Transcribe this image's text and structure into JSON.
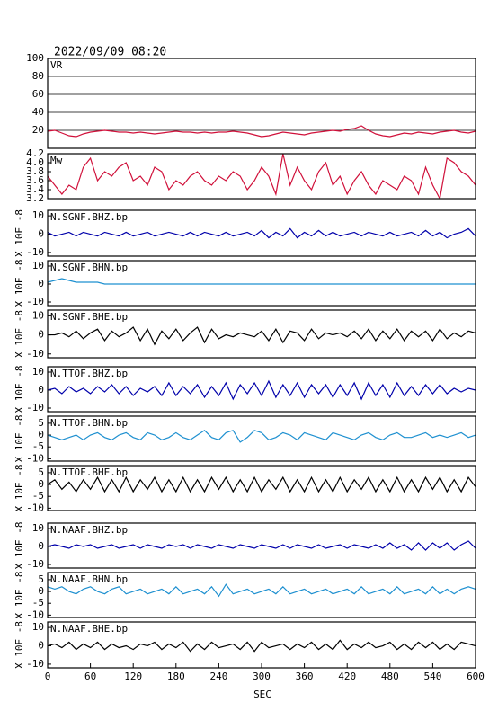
{
  "chart_data": {
    "type": "line",
    "title": "2022/09/09 08:20",
    "xlabel": "SEC",
    "ylabel": "X 10E -8",
    "xlim": [
      0,
      600
    ],
    "xticks": [
      0,
      60,
      120,
      180,
      240,
      300,
      360,
      420,
      480,
      540,
      600
    ],
    "x": [
      0,
      10,
      20,
      30,
      40,
      50,
      60,
      70,
      80,
      90,
      100,
      110,
      120,
      130,
      140,
      150,
      160,
      170,
      180,
      190,
      200,
      210,
      220,
      230,
      240,
      250,
      260,
      270,
      280,
      290,
      300,
      310,
      320,
      330,
      340,
      350,
      360,
      370,
      380,
      390,
      400,
      410,
      420,
      430,
      440,
      450,
      460,
      470,
      480,
      490,
      500,
      510,
      520,
      530,
      540,
      550,
      560,
      570,
      580,
      590,
      600
    ],
    "panels": [
      {
        "label": "VR",
        "color": "#d0103a",
        "ylim": [
          0,
          100
        ],
        "yticks": [
          20,
          40,
          60,
          80,
          100
        ],
        "grid": true,
        "wave_axis": false,
        "values": [
          19,
          20,
          17,
          14,
          13,
          16,
          18,
          19,
          20,
          19,
          18,
          18,
          17,
          18,
          17,
          16,
          17,
          18,
          19,
          18,
          18,
          17,
          18,
          17,
          18,
          18,
          19,
          18,
          17,
          15,
          13,
          14,
          16,
          18,
          17,
          16,
          15,
          17,
          18,
          19,
          20,
          19,
          21,
          22,
          25,
          20,
          16,
          14,
          13,
          15,
          17,
          16,
          18,
          17,
          16,
          18,
          19,
          20,
          18,
          17,
          19
        ]
      },
      {
        "label": "Mw",
        "color": "#d0103a",
        "ylim": [
          3.2,
          4.2
        ],
        "yticks": [
          3.2,
          3.4,
          3.6,
          3.8,
          {
            "value": 4,
            "label": "4.0"
          },
          4.2
        ],
        "grid": false,
        "wave_axis": false,
        "values": [
          3.7,
          3.5,
          3.3,
          3.5,
          3.4,
          3.9,
          4.1,
          3.6,
          3.8,
          3.7,
          3.9,
          4.0,
          3.6,
          3.7,
          3.5,
          3.9,
          3.8,
          3.4,
          3.6,
          3.5,
          3.7,
          3.8,
          3.6,
          3.5,
          3.7,
          3.6,
          3.8,
          3.7,
          3.4,
          3.6,
          3.9,
          3.7,
          3.3,
          4.2,
          3.5,
          3.9,
          3.6,
          3.4,
          3.8,
          4.0,
          3.5,
          3.7,
          3.3,
          3.6,
          3.8,
          3.5,
          3.3,
          3.6,
          3.5,
          3.4,
          3.7,
          3.6,
          3.3,
          3.9,
          3.5,
          3.2,
          4.1,
          4.0,
          3.8,
          3.7,
          3.5
        ]
      },
      {
        "label": "N.SGNF.BHZ.bp",
        "color": "#0000aa",
        "ylim": [
          -12,
          13
        ],
        "yticks": [
          -10,
          0,
          10
        ],
        "grid": false,
        "wave_axis": true,
        "values": [
          1,
          -1,
          0,
          1,
          -1,
          1,
          0,
          -1,
          1,
          0,
          -1,
          1,
          -1,
          0,
          1,
          -1,
          0,
          1,
          0,
          -1,
          1,
          -1,
          1,
          0,
          -1,
          1,
          -1,
          0,
          1,
          -1,
          2,
          -2,
          1,
          -1,
          3,
          -2,
          1,
          -1,
          2,
          -1,
          1,
          -1,
          0,
          1,
          -1,
          1,
          0,
          -1,
          1,
          -1,
          0,
          1,
          -1,
          2,
          -1,
          1,
          -2,
          0,
          1,
          3,
          -1
        ]
      },
      {
        "label": "N.SGNF.BHN.bp",
        "color": "#1e90d0",
        "ylim": [
          -12,
          13
        ],
        "yticks": [
          -10,
          0,
          10
        ],
        "grid": false,
        "wave_axis": true,
        "values": [
          1,
          2,
          3,
          2,
          1,
          1,
          1,
          1,
          0,
          0,
          0,
          0,
          0,
          0,
          0,
          0,
          0,
          0,
          0,
          0,
          0,
          0,
          0,
          0,
          0,
          0,
          0,
          0,
          0,
          0,
          0,
          0,
          0,
          0,
          0,
          0,
          0,
          0,
          0,
          0,
          0,
          0,
          0,
          0,
          0,
          0,
          0,
          0,
          0,
          0,
          0,
          0,
          0,
          0,
          0,
          0,
          0,
          0,
          0,
          0,
          0
        ]
      },
      {
        "label": "N.SGNF.BHE.bp",
        "color": "#000000",
        "ylim": [
          -12,
          13
        ],
        "yticks": [
          -10,
          0,
          10
        ],
        "grid": false,
        "wave_axis": true,
        "values": [
          0,
          0,
          1,
          -1,
          2,
          -2,
          1,
          3,
          -3,
          2,
          -1,
          1,
          4,
          -3,
          3,
          -5,
          2,
          -2,
          3,
          -3,
          1,
          4,
          -4,
          3,
          -2,
          0,
          -1,
          1,
          0,
          -1,
          2,
          -3,
          3,
          -4,
          2,
          1,
          -3,
          3,
          -2,
          1,
          0,
          1,
          -1,
          2,
          -2,
          3,
          -3,
          2,
          -2,
          3,
          -3,
          2,
          -1,
          2,
          -3,
          3,
          -2,
          1,
          -1,
          2,
          1
        ]
      },
      {
        "label": "N.TTOF.BHZ.bp",
        "color": "#0000aa",
        "ylim": [
          -12,
          13
        ],
        "yticks": [
          -10,
          0,
          10
        ],
        "grid": false,
        "wave_axis": true,
        "values": [
          0,
          1,
          -2,
          2,
          -1,
          1,
          -2,
          2,
          -1,
          3,
          -2,
          2,
          -3,
          1,
          -1,
          2,
          -3,
          4,
          -3,
          2,
          -2,
          3,
          -4,
          2,
          -3,
          4,
          -5,
          3,
          -2,
          4,
          -3,
          5,
          -4,
          3,
          -3,
          4,
          -4,
          3,
          -2,
          3,
          -4,
          3,
          -3,
          4,
          -5,
          4,
          -3,
          3,
          -4,
          4,
          -3,
          2,
          -3,
          3,
          -2,
          3,
          -2,
          1,
          -1,
          1,
          0
        ]
      },
      {
        "label": "N.TTOF.BHN.bp",
        "color": "#1e90d0",
        "ylim": [
          -11,
          8
        ],
        "yticks": [
          -10,
          -5,
          0,
          5
        ],
        "grid": false,
        "wave_axis": true,
        "values": [
          0,
          -1,
          -2,
          -1,
          0,
          -2,
          0,
          1,
          -1,
          -2,
          0,
          1,
          -1,
          -2,
          1,
          0,
          -2,
          -1,
          1,
          -1,
          -2,
          0,
          2,
          -1,
          -2,
          1,
          2,
          -3,
          -1,
          2,
          1,
          -2,
          -1,
          1,
          0,
          -2,
          1,
          0,
          -1,
          -2,
          1,
          0,
          -1,
          -2,
          0,
          1,
          -1,
          -2,
          0,
          1,
          -1,
          -1,
          0,
          1,
          -1,
          0,
          -1,
          0,
          1,
          -1,
          0
        ]
      },
      {
        "label": "N.TTOF.BHE.bp",
        "color": "#000000",
        "ylim": [
          -11,
          8
        ],
        "yticks": [
          -10,
          -5,
          0,
          5
        ],
        "grid": false,
        "wave_axis": true,
        "values": [
          0,
          2,
          -2,
          1,
          -3,
          2,
          -2,
          3,
          -3,
          2,
          -3,
          3,
          -3,
          2,
          -2,
          3,
          -3,
          2,
          -3,
          3,
          -3,
          2,
          -3,
          3,
          -2,
          3,
          -3,
          2,
          -3,
          3,
          -3,
          2,
          -2,
          3,
          -3,
          2,
          -3,
          3,
          -3,
          2,
          -3,
          3,
          -3,
          2,
          -2,
          3,
          -3,
          2,
          -3,
          3,
          -3,
          2,
          -3,
          3,
          -2,
          3,
          -3,
          2,
          -3,
          3,
          -1
        ]
      },
      {
        "label": "N.NAAF.BHZ.bp",
        "color": "#0000aa",
        "ylim": [
          -12,
          13
        ],
        "yticks": [
          -10,
          0,
          10
        ],
        "grid": false,
        "wave_axis": true,
        "values": [
          0,
          1,
          0,
          -1,
          1,
          0,
          1,
          -1,
          0,
          1,
          -1,
          0,
          1,
          -1,
          1,
          0,
          -1,
          1,
          0,
          1,
          -1,
          1,
          0,
          -1,
          1,
          0,
          -1,
          1,
          0,
          -1,
          1,
          0,
          -1,
          1,
          -1,
          1,
          0,
          -1,
          1,
          -1,
          0,
          1,
          -1,
          1,
          0,
          -1,
          1,
          -1,
          2,
          -1,
          1,
          -2,
          2,
          -2,
          2,
          -1,
          2,
          -2,
          1,
          3,
          -1
        ]
      },
      {
        "label": "N.NAAF.BHN.bp",
        "color": "#1e90d0",
        "ylim": [
          -11,
          8
        ],
        "yticks": [
          -10,
          -5,
          0,
          5
        ],
        "grid": false,
        "wave_axis": true,
        "values": [
          2,
          1,
          2,
          0,
          -1,
          1,
          2,
          0,
          -1,
          1,
          2,
          -1,
          0,
          1,
          -1,
          0,
          1,
          -1,
          2,
          -1,
          0,
          1,
          -1,
          2,
          -2,
          3,
          -1,
          0,
          1,
          -1,
          0,
          1,
          -1,
          2,
          -1,
          0,
          1,
          -1,
          0,
          1,
          -1,
          0,
          1,
          -1,
          2,
          -1,
          0,
          1,
          -1,
          2,
          -1,
          0,
          1,
          -1,
          2,
          -1,
          1,
          -1,
          1,
          2,
          1
        ]
      },
      {
        "label": "N.NAAF.BHE.bp",
        "color": "#000000",
        "ylim": [
          -12,
          13
        ],
        "yticks": [
          -10,
          0,
          10
        ],
        "grid": false,
        "wave_axis": true,
        "values": [
          0,
          1,
          -1,
          2,
          -2,
          1,
          -1,
          2,
          -2,
          1,
          -1,
          0,
          -2,
          1,
          0,
          2,
          -2,
          1,
          -1,
          2,
          -3,
          1,
          -2,
          2,
          -1,
          0,
          1,
          -2,
          2,
          -3,
          2,
          -1,
          0,
          1,
          -2,
          1,
          -1,
          2,
          -2,
          1,
          -2,
          3,
          -2,
          1,
          -1,
          2,
          -1,
          0,
          2,
          -2,
          1,
          -2,
          2,
          -1,
          2,
          -2,
          1,
          -2,
          2,
          1,
          0
        ]
      }
    ]
  }
}
